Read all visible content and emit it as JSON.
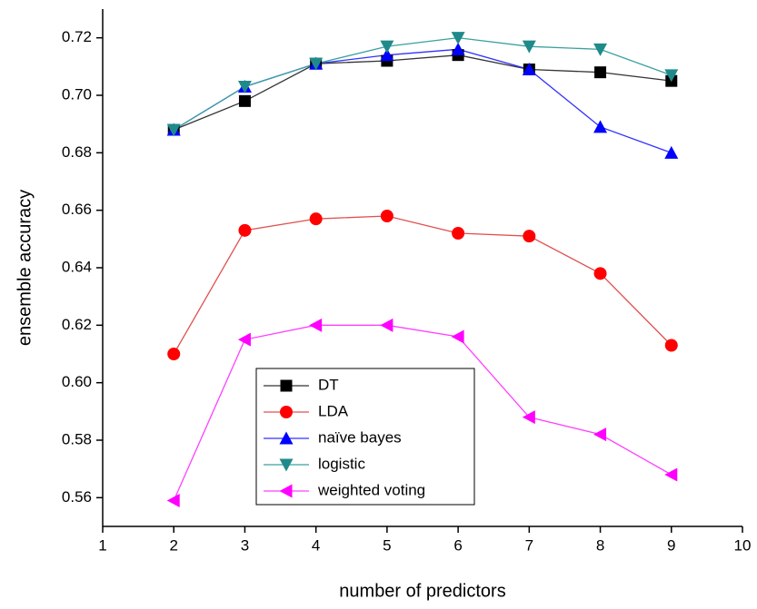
{
  "chart_data": {
    "type": "line",
    "xlabel": "number of predictors",
    "ylabel": "ensemble accuracy",
    "x": [
      2,
      3,
      4,
      5,
      6,
      7,
      8,
      9
    ],
    "series": [
      {
        "name": "DT",
        "color": "#000000",
        "line_color": "#333333",
        "marker": "square",
        "values": [
          0.688,
          0.698,
          0.711,
          0.712,
          0.714,
          0.709,
          0.708,
          0.705
        ]
      },
      {
        "name": "LDA",
        "color": "#ff0000",
        "line_color": "#e05050",
        "marker": "circle",
        "values": [
          0.61,
          0.653,
          0.657,
          0.658,
          0.652,
          0.651,
          0.638,
          0.613
        ]
      },
      {
        "name": "naïve bayes",
        "color": "#0000ff",
        "line_color": "#3030ff",
        "marker": "triangle-up",
        "values": [
          0.688,
          0.703,
          0.711,
          0.714,
          0.716,
          0.709,
          0.689,
          0.68
        ]
      },
      {
        "name": "logistic",
        "color": "#1f8a8a",
        "line_color": "#3aa0a0",
        "marker": "triangle-down",
        "values": [
          0.688,
          0.703,
          0.711,
          0.717,
          0.72,
          0.717,
          0.716,
          0.707
        ]
      },
      {
        "name": "weighted voting",
        "color": "#ff00ff",
        "line_color": "#ff40ff",
        "marker": "triangle-left",
        "values": [
          0.559,
          0.615,
          0.62,
          0.62,
          0.616,
          0.588,
          0.582,
          0.568
        ]
      }
    ],
    "xlim": [
      1,
      10
    ],
    "xticks": [
      1,
      2,
      3,
      4,
      5,
      6,
      7,
      8,
      9,
      10
    ],
    "ylim": [
      0.55,
      0.73
    ],
    "yticks": [
      0.56,
      0.58,
      {
        "value": 0.6,
        "label": "0.60"
      },
      0.62,
      0.64,
      0.66,
      0.68,
      {
        "value": 0.7,
        "label": "0.70"
      },
      0.72
    ],
    "legend": "lower center",
    "grid": false
  }
}
